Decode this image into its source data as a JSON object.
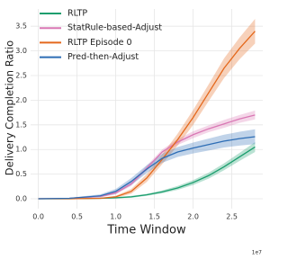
{
  "chart_data": {
    "type": "line",
    "xlabel": "Time Window",
    "ylabel": "Delivery Completion Ratio",
    "x_offset_label": "1e7",
    "x": [
      0,
      0.4,
      0.8,
      1.0,
      1.2,
      1.4,
      1.6,
      1.8,
      2.0,
      2.2,
      2.4,
      2.6,
      2.8
    ],
    "series": [
      {
        "name": "RLTP",
        "color": "#1b9e6e",
        "values": [
          0,
          0,
          0.01,
          0.02,
          0.04,
          0.08,
          0.14,
          0.22,
          0.33,
          0.47,
          0.65,
          0.85,
          1.05
        ],
        "upper": [
          0,
          0,
          0.02,
          0.03,
          0.06,
          0.1,
          0.17,
          0.26,
          0.38,
          0.53,
          0.72,
          0.93,
          1.15
        ],
        "lower": [
          0,
          0,
          0,
          0.01,
          0.02,
          0.06,
          0.11,
          0.18,
          0.28,
          0.41,
          0.58,
          0.77,
          0.95
        ]
      },
      {
        "name": "StatRule-based-Adjust",
        "color": "#d977b4",
        "values": [
          0,
          0.01,
          0.05,
          0.12,
          0.3,
          0.62,
          0.95,
          1.15,
          1.3,
          1.42,
          1.52,
          1.62,
          1.7
        ],
        "upper": [
          0,
          0.02,
          0.07,
          0.15,
          0.34,
          0.67,
          1.0,
          1.21,
          1.37,
          1.49,
          1.6,
          1.7,
          1.79
        ],
        "lower": [
          0,
          0,
          0.03,
          0.09,
          0.26,
          0.57,
          0.9,
          1.09,
          1.23,
          1.35,
          1.44,
          1.54,
          1.61
        ]
      },
      {
        "name": "RLTP Episode 0",
        "color": "#e4681c",
        "values": [
          0,
          0,
          0.01,
          0.04,
          0.15,
          0.42,
          0.8,
          1.2,
          1.65,
          2.15,
          2.65,
          3.05,
          3.4
        ],
        "upper": [
          0,
          0,
          0.02,
          0.06,
          0.2,
          0.5,
          0.9,
          1.32,
          1.8,
          2.32,
          2.85,
          3.27,
          3.65
        ],
        "lower": [
          0,
          0,
          0,
          0.02,
          0.1,
          0.34,
          0.7,
          1.08,
          1.5,
          1.98,
          2.45,
          2.83,
          3.15
        ]
      },
      {
        "name": "Pred-then-Adjust",
        "color": "#2d6db5",
        "values": [
          0,
          0.01,
          0.06,
          0.15,
          0.35,
          0.6,
          0.82,
          0.95,
          1.03,
          1.1,
          1.17,
          1.22,
          1.26
        ],
        "upper": [
          0,
          0.02,
          0.09,
          0.2,
          0.42,
          0.68,
          0.91,
          1.05,
          1.14,
          1.22,
          1.3,
          1.36,
          1.41
        ],
        "lower": [
          0,
          0,
          0.03,
          0.1,
          0.28,
          0.52,
          0.73,
          0.85,
          0.92,
          0.98,
          1.04,
          1.08,
          1.11
        ]
      }
    ],
    "xlim": [
      -0.1,
      2.9
    ],
    "xticks": [
      {
        "value": 0,
        "label": "0.0"
      },
      0.5,
      {
        "value": 1,
        "label": "1.0"
      },
      1.5,
      {
        "value": 2,
        "label": "2.0"
      },
      2.5
    ],
    "ylim": [
      -0.2,
      3.85
    ],
    "yticks": [
      {
        "value": 0,
        "label": "0.0"
      },
      0.5,
      {
        "value": 1,
        "label": "1.0"
      },
      1.5,
      {
        "value": 2,
        "label": "2.0"
      },
      2.5,
      {
        "value": 3,
        "label": "3.0"
      },
      3.5
    ],
    "grid": true,
    "legend": "upper left"
  }
}
